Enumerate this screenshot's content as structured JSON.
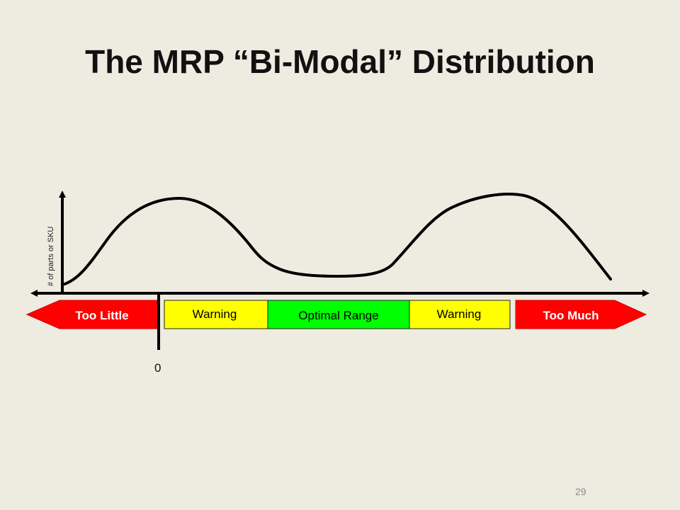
{
  "title": "The MRP “Bi-Modal” Distribution",
  "y_axis_label": "# of parts or SKU",
  "zero_label": "0",
  "page_number": "29",
  "segments": [
    {
      "label": "Too Little",
      "color": "#ff0000",
      "text_color": "#ffffff"
    },
    {
      "label": "Warning",
      "color": "#ffff00",
      "text_color": "#000000"
    },
    {
      "label": "Optimal Range",
      "color": "#00ff00",
      "text_color": "#000000"
    },
    {
      "label": "Warning",
      "color": "#ffff00",
      "text_color": "#000000"
    },
    {
      "label": "Too Much",
      "color": "#ff0000",
      "text_color": "#ffffff"
    }
  ]
}
